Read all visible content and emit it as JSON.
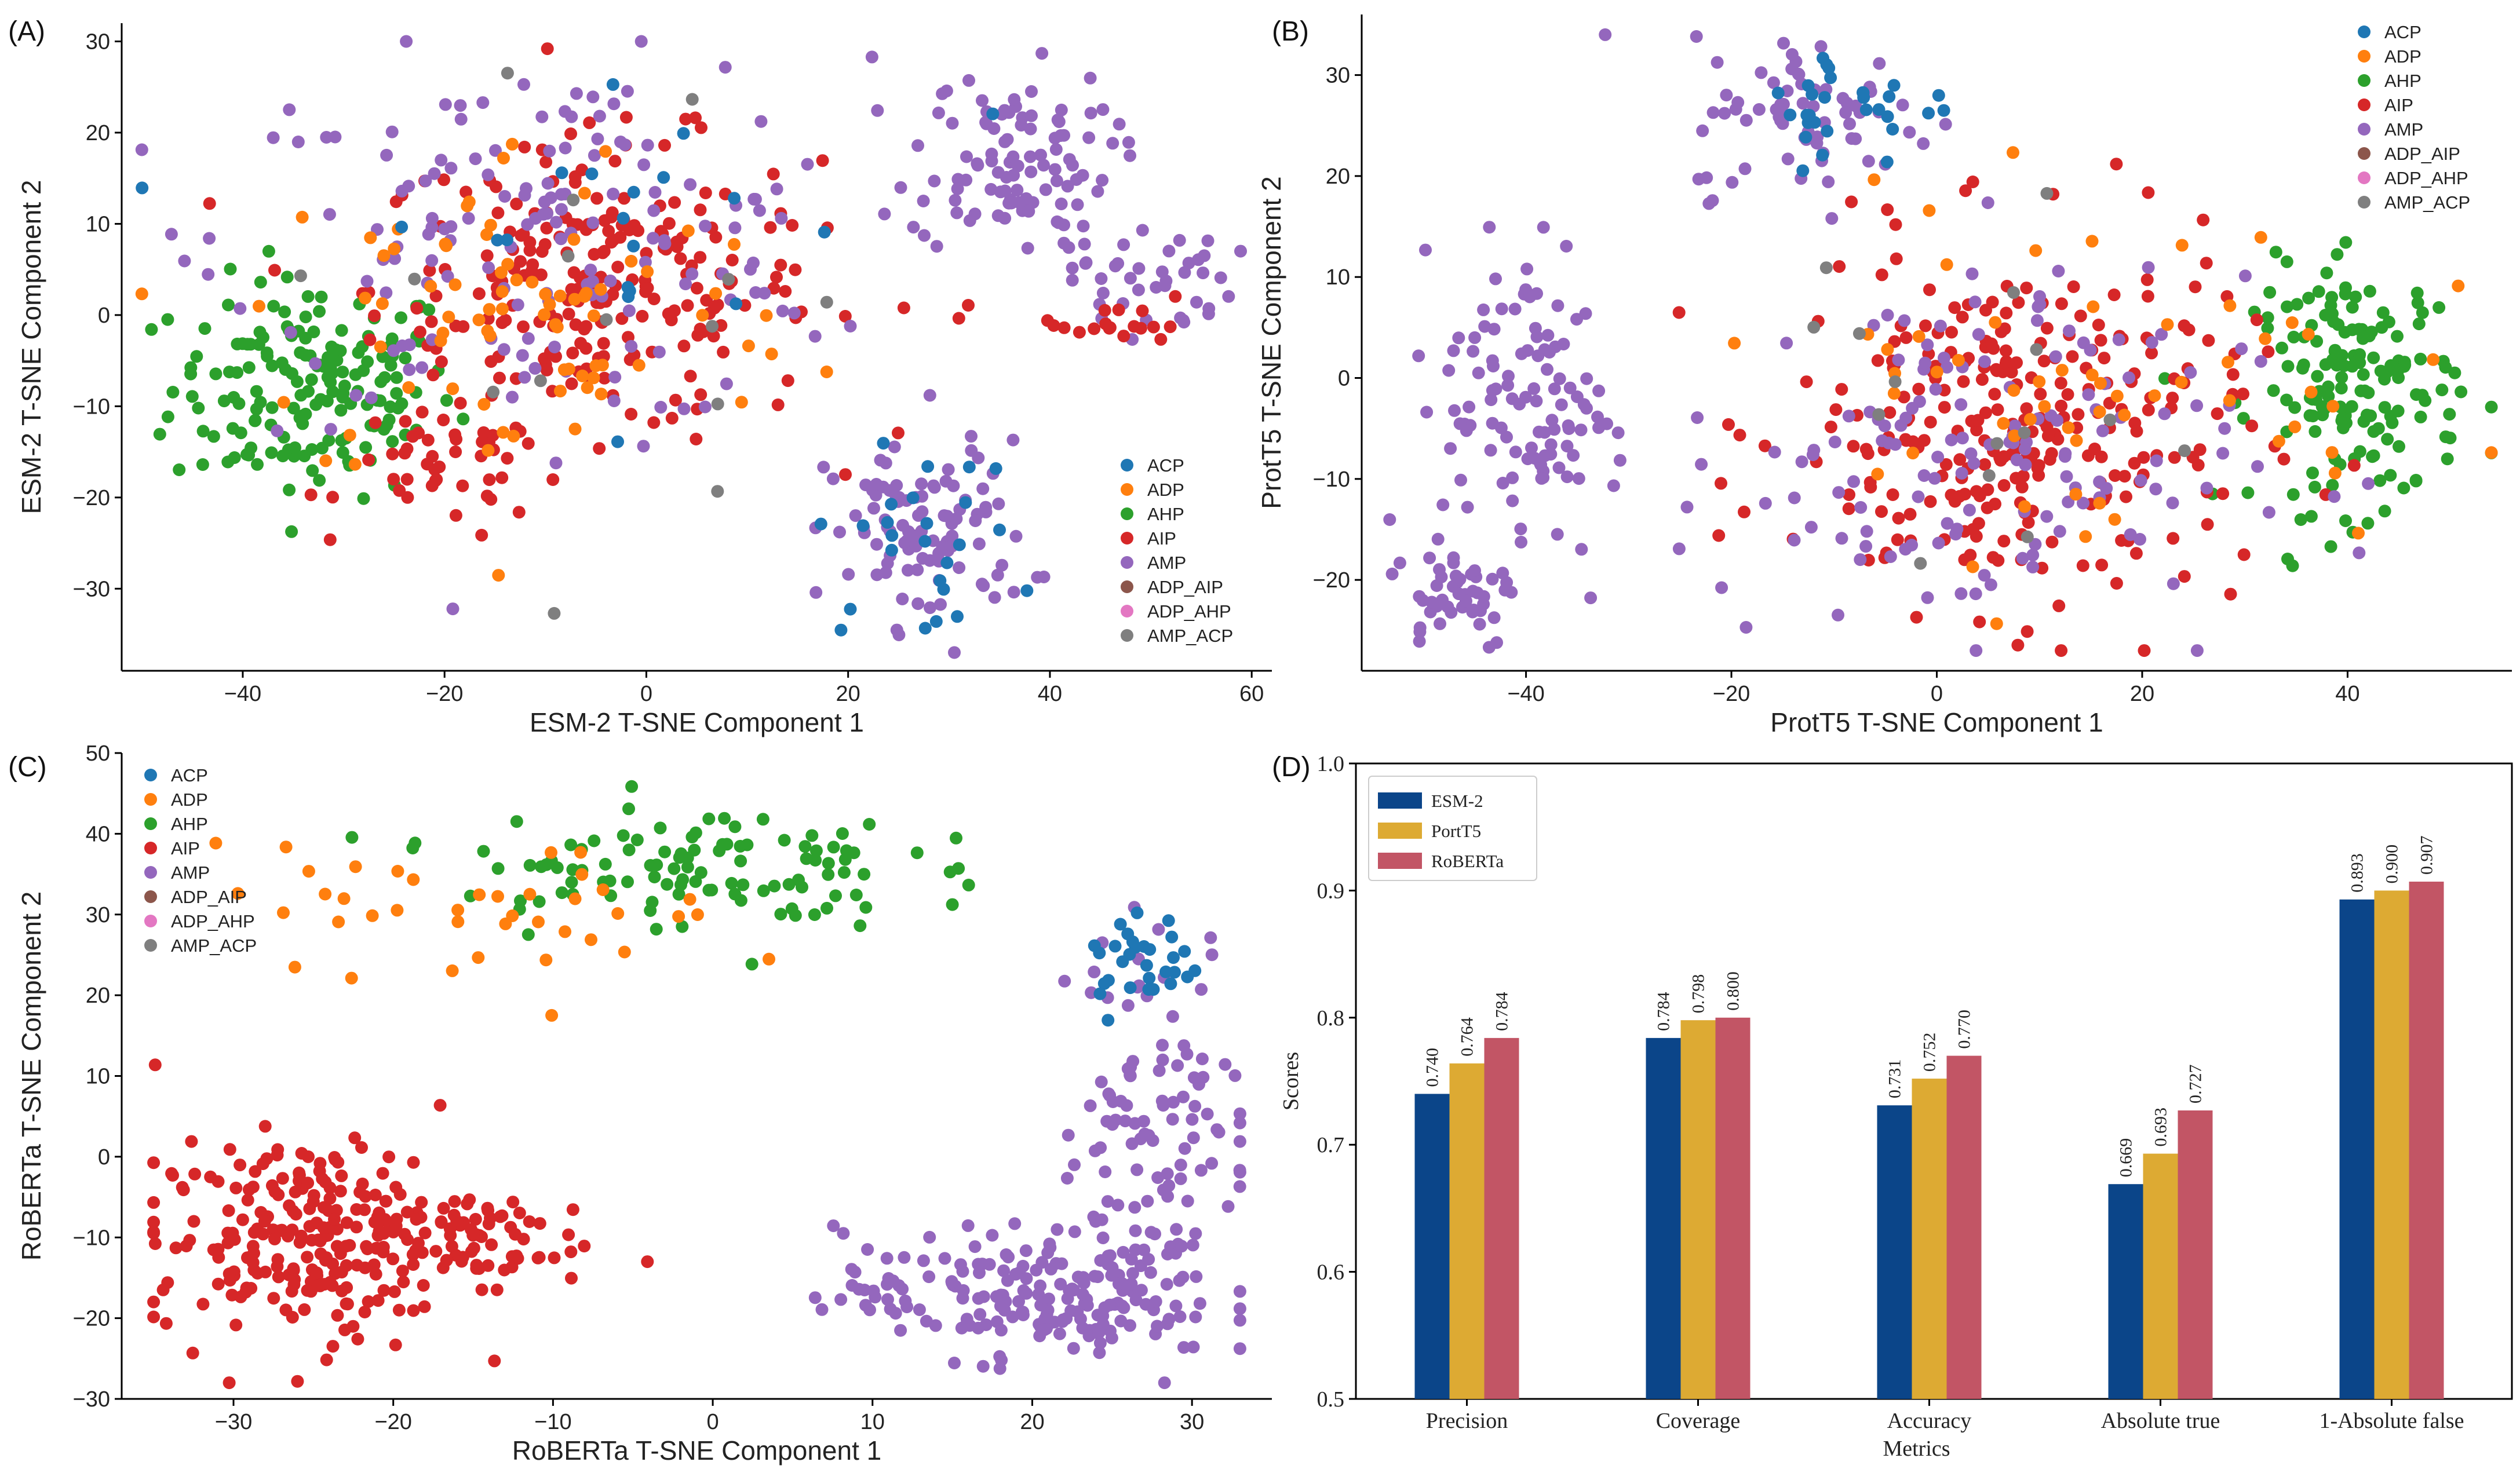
{
  "figure": {
    "colors": {
      "ACP": "#1f77b4",
      "ADP": "#ff7f0e",
      "AHP": "#2ca02c",
      "AIP": "#d62728",
      "AMP": "#9467bd",
      "ADP_AIP": "#8c564b",
      "ADP_AHP": "#e377c2",
      "AMP_ACP": "#7f7f7f",
      "ESM-2": "#0b4589",
      "PortT5": "#ddaa33",
      "RoBERTa": "#c25565"
    }
  },
  "chart_data": [
    {
      "panel": "(A)",
      "type": "scatter",
      "xlabel": "ESM-2 T-SNE Component 1",
      "ylabel": "ESM-2 T-SNE Component 2",
      "xlim": [
        -52,
        62
      ],
      "ylim": [
        -39,
        32
      ],
      "xticks": [
        -40,
        -20,
        0,
        20,
        40,
        60
      ],
      "xticklabels": [
        "−40",
        "−20",
        "0",
        "20",
        "40",
        "60"
      ],
      "yticks": [
        -30,
        -20,
        -10,
        0,
        10,
        20,
        30
      ],
      "yticklabels": [
        "−30",
        "−20",
        "−10",
        "0",
        "10",
        "20",
        "30"
      ],
      "legend": [
        "ACP",
        "ADP",
        "AHP",
        "AIP",
        "AMP",
        "ADP_AIP",
        "ADP_AHP",
        "AMP_ACP"
      ],
      "legend_position": "lower-right",
      "clusters": [
        {
          "cls": "AHP",
          "cx": -33,
          "cy": -8,
          "sx": 7,
          "sy": 6,
          "n": 170
        },
        {
          "cls": "AIP",
          "cx": -5,
          "cy": 3,
          "sx": 11,
          "sy": 8,
          "n": 240
        },
        {
          "cls": "AIP",
          "cx": -20,
          "cy": -17,
          "sx": 5,
          "sy": 3,
          "n": 40
        },
        {
          "cls": "AMP",
          "cx": -10,
          "cy": 8,
          "sx": 16,
          "sy": 10,
          "n": 160
        },
        {
          "cls": "ADP",
          "cx": -12,
          "cy": 0,
          "sx": 14,
          "sy": 10,
          "n": 80
        },
        {
          "cls": "AMP",
          "cx": 36,
          "cy": 17,
          "sx": 5,
          "sy": 5,
          "n": 100
        },
        {
          "cls": "AMP",
          "cx": 50,
          "cy": 4,
          "sx": 4,
          "sy": 3,
          "n": 40
        },
        {
          "cls": "AIP",
          "cx": 44,
          "cy": -1,
          "sx": 6,
          "sy": 1.5,
          "n": 20
        },
        {
          "cls": "AMP",
          "cx": 28,
          "cy": -24,
          "sx": 5,
          "sy": 5,
          "n": 100
        },
        {
          "cls": "ACP",
          "cx": 27,
          "cy": -25,
          "sx": 5,
          "sy": 5,
          "n": 25
        },
        {
          "cls": "ACP",
          "cx": -5,
          "cy": 10,
          "sx": 15,
          "sy": 10,
          "n": 20
        },
        {
          "cls": "AMP_ACP",
          "cx": 0,
          "cy": 5,
          "sx": 20,
          "sy": 12,
          "n": 15
        }
      ]
    },
    {
      "panel": "(B)",
      "type": "scatter",
      "xlabel": "ProtT5 T-SNE Component 1",
      "ylabel": "ProtT5 T-SNE Component 2",
      "xlim": [
        -56,
        56
      ],
      "ylim": [
        -29,
        36
      ],
      "xticks": [
        -40,
        -20,
        0,
        20,
        40
      ],
      "xticklabels": [
        "−40",
        "−20",
        "0",
        "20",
        "40"
      ],
      "yticks": [
        -20,
        -10,
        0,
        10,
        20,
        30
      ],
      "yticklabels": [
        "−20",
        "−10",
        "0",
        "10",
        "20",
        "30"
      ],
      "legend": [
        "ACP",
        "ADP",
        "AHP",
        "AIP",
        "AMP",
        "ADP_AIP",
        "ADP_AHP",
        "AMP_ACP"
      ],
      "legend_position": "upper-right",
      "clusters": [
        {
          "cls": "AHP",
          "cx": 41,
          "cy": -1,
          "sx": 5,
          "sy": 6,
          "n": 160
        },
        {
          "cls": "AIP",
          "cx": 8,
          "cy": -5,
          "sx": 11,
          "sy": 9,
          "n": 280
        },
        {
          "cls": "AMP",
          "cx": 2,
          "cy": -8,
          "sx": 14,
          "sy": 9,
          "n": 150
        },
        {
          "cls": "AMP",
          "cx": -40,
          "cy": -2,
          "sx": 4,
          "sy": 8,
          "n": 110
        },
        {
          "cls": "AMP",
          "cx": -47,
          "cy": -21,
          "sx": 3,
          "sy": 3,
          "n": 45
        },
        {
          "cls": "AMP",
          "cx": -12,
          "cy": 26,
          "sx": 6,
          "sy": 4,
          "n": 70
        },
        {
          "cls": "ACP",
          "cx": -8,
          "cy": 27,
          "sx": 5,
          "sy": 3,
          "n": 30
        },
        {
          "cls": "ADP",
          "cx": 15,
          "cy": 0,
          "sx": 15,
          "sy": 9,
          "n": 60
        },
        {
          "cls": "AMP_ACP",
          "cx": 0,
          "cy": 0,
          "sx": 18,
          "sy": 12,
          "n": 15
        }
      ]
    },
    {
      "panel": "(C)",
      "type": "scatter",
      "xlabel": "RoBERTa T-SNE Component 1",
      "ylabel": "RoBERTa T-SNE Component 2",
      "xlim": [
        -37,
        35
      ],
      "ylim": [
        -30,
        50
      ],
      "xticks": [
        -30,
        -20,
        -10,
        0,
        10,
        20,
        30
      ],
      "xticklabels": [
        "−30",
        "−20",
        "−10",
        "0",
        "10",
        "20",
        "30"
      ],
      "yticks": [
        -30,
        -20,
        -10,
        0,
        10,
        20,
        30,
        40,
        50
      ],
      "yticklabels": [
        "−30",
        "−20",
        "−10",
        "0",
        "10",
        "20",
        "30",
        "40",
        "50"
      ],
      "legend": [
        "ACP",
        "ADP",
        "AHP",
        "AIP",
        "AMP",
        "ADP_AIP",
        "ADP_AHP",
        "AMP_ACP"
      ],
      "legend_position": "upper-left",
      "clusters": [
        {
          "cls": "AIP",
          "cx": -25,
          "cy": -10,
          "sx": 5,
          "sy": 6,
          "n": 260
        },
        {
          "cls": "AIP",
          "cx": -14,
          "cy": -10,
          "sx": 3,
          "sy": 3,
          "n": 40
        },
        {
          "cls": "AMP",
          "cx": 20,
          "cy": -17,
          "sx": 6,
          "sy": 4,
          "n": 200
        },
        {
          "cls": "AMP",
          "cx": 28,
          "cy": 5,
          "sx": 3,
          "sy": 12,
          "n": 110
        },
        {
          "cls": "AHP",
          "cx": -2,
          "cy": 36,
          "sx": 7,
          "sy": 4,
          "n": 110
        },
        {
          "cls": "ACP",
          "cx": 27,
          "cy": 24,
          "sx": 2,
          "sy": 3,
          "n": 30
        },
        {
          "cls": "ADP",
          "cx": -15,
          "cy": 30,
          "sx": 8,
          "sy": 4,
          "n": 40
        }
      ]
    },
    {
      "panel": "(D)",
      "type": "bar",
      "xlabel": "Metrics",
      "ylabel": "Scores",
      "ylim": [
        0.5,
        1.0
      ],
      "yticks": [
        0.5,
        0.6,
        0.7,
        0.8,
        0.9,
        1.0
      ],
      "yticklabels": [
        "0.5",
        "0.6",
        "0.7",
        "0.8",
        "0.9",
        "1.0"
      ],
      "categories": [
        "Precision",
        "Coverage",
        "Accuracy",
        "Absolute true",
        "1-Absolute false"
      ],
      "series": [
        {
          "name": "ESM-2",
          "values": [
            0.74,
            0.784,
            0.731,
            0.669,
            0.893
          ],
          "labels": [
            "0.740",
            "0.784",
            "0.731",
            "0.669",
            "0.893"
          ]
        },
        {
          "name": "PortT5",
          "values": [
            0.764,
            0.798,
            0.752,
            0.693,
            0.9
          ],
          "labels": [
            "0.764",
            "0.798",
            "0.752",
            "0.693",
            "0.900"
          ]
        },
        {
          "name": "RoBERTa",
          "values": [
            0.784,
            0.8,
            0.77,
            0.727,
            0.907
          ],
          "labels": [
            "0.784",
            "0.800",
            "0.770",
            "0.727",
            "0.907"
          ]
        }
      ],
      "legend_position": "upper-left"
    }
  ]
}
